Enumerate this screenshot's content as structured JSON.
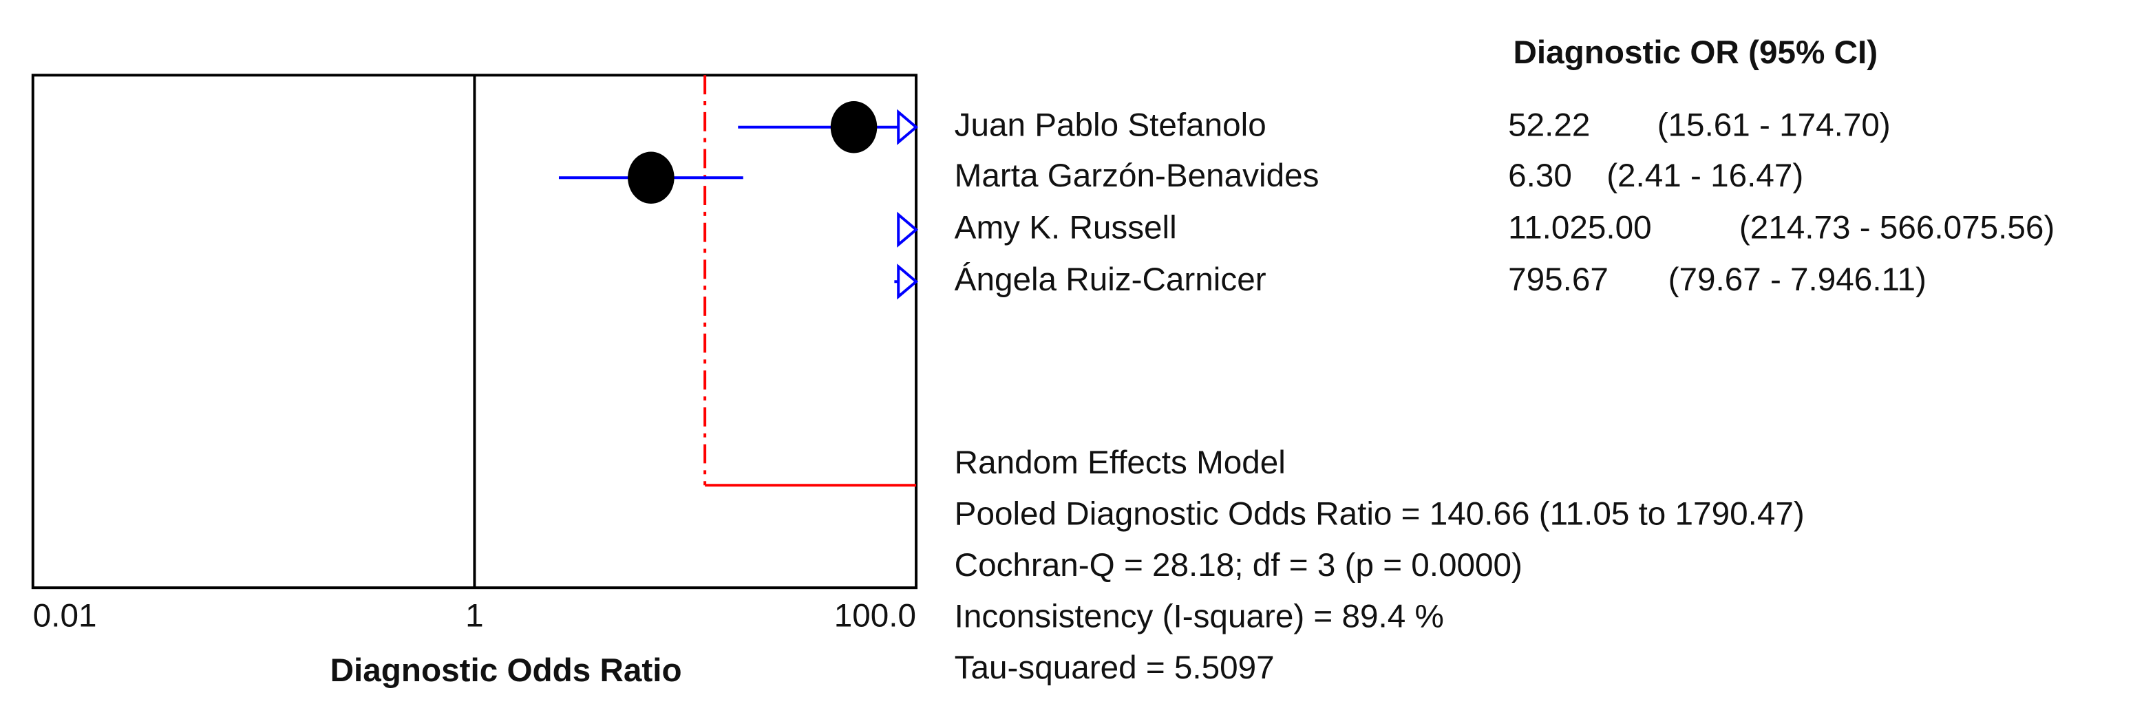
{
  "chart_data": {
    "type": "forest",
    "x_label": "Diagnostic Odds Ratio",
    "column_header": "Diagnostic OR (95% CI)",
    "log_x": true,
    "xlim": [
      0.01,
      100
    ],
    "xticks": [
      0.01,
      1,
      {
        "value": 100,
        "label": "100.0"
      }
    ],
    "point_color": "#000000",
    "ci_color": "#0000ff",
    "pooled_color": "#ff0000",
    "studies": [
      {
        "name": "Juan Pablo Stefanolo",
        "or": 52.22,
        "ci_lower": 15.61,
        "ci_upper": 174.7,
        "or_label": "52.22",
        "ci_label": "(15.61 - 174.70)"
      },
      {
        "name": "Marta Garzón-Benavides",
        "or": 6.3,
        "ci_lower": 2.41,
        "ci_upper": 16.47,
        "or_label": "6.30",
        "ci_label": "(2.41 - 16.47)"
      },
      {
        "name": "Amy K. Russell",
        "or": 11025,
        "ci_lower": 214.73,
        "ci_upper": 566075.56,
        "or_label": "11.025.00",
        "ci_label": "(214.73 - 566.075.56)"
      },
      {
        "name": "Ángela Ruiz-Carnicer",
        "or": 795.67,
        "ci_lower": 79.67,
        "ci_upper": 7946.11,
        "or_label": "795.67",
        "ci_label": "(79.67 - 7.946.11)"
      }
    ],
    "pooled": {
      "or": 140.66,
      "ci_lower": 11.05,
      "ci_upper": 1790.47
    },
    "summary_lines": [
      "Random Effects Model",
      "Pooled Diagnostic Odds Ratio = 140.66 (11.05 to 1790.47)",
      "Cochran-Q = 28.18; df =  3 (p = 0.0000)",
      "Inconsistency (I-square) = 89.4 %",
      "Tau-squared = 5.5097"
    ]
  }
}
